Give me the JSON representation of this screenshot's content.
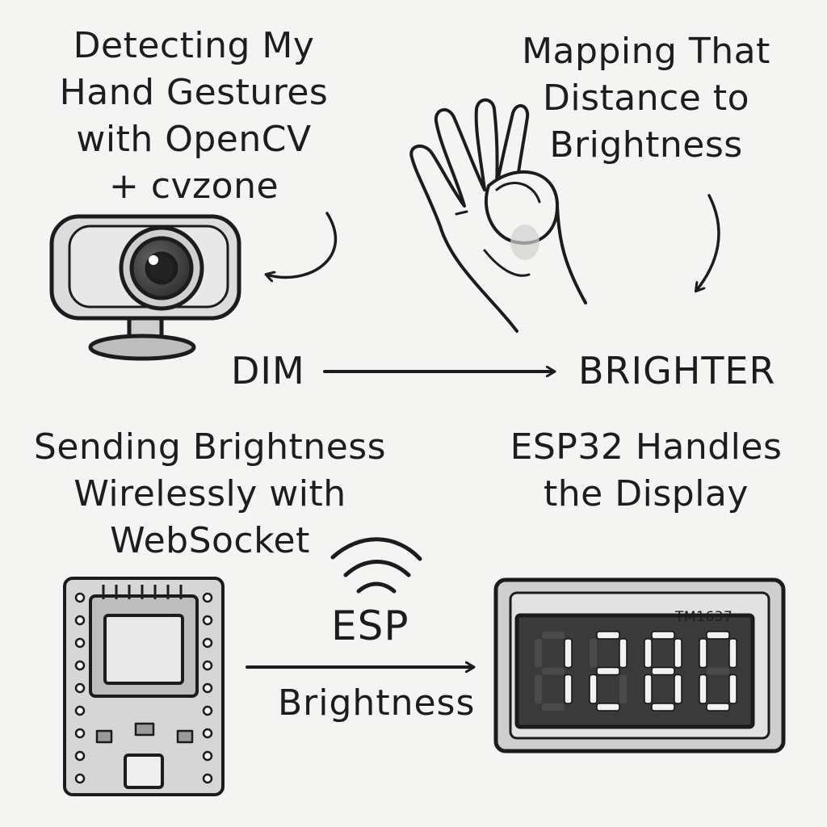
{
  "steps": {
    "detect": {
      "lines": [
        "Detecting My",
        "Hand Gestures",
        "with OpenCV",
        "+ cvzone"
      ]
    },
    "map": {
      "lines": [
        "Mapping That",
        "Distance to",
        "Brightness"
      ]
    },
    "send": {
      "lines": [
        "Sending Brightness",
        "Wirelessly with",
        "WebSocket"
      ]
    },
    "display": {
      "lines": [
        "ESP32 Handles",
        "the Display"
      ]
    }
  },
  "scale": {
    "low_label": "DIM",
    "high_label": "BRIGHTER"
  },
  "link": {
    "top_label": "ESP",
    "bottom_label": "Brightness"
  },
  "display_module": {
    "chip_label": "TM1637",
    "digits": [
      "1",
      "2",
      "8",
      "0"
    ]
  },
  "icons": {
    "camera": "webcam-icon",
    "hand": "hand-pinch-gesture-icon",
    "board": "esp32-board-icon",
    "wifi": "wifi-signal-icon",
    "display": "seven-segment-display-icon"
  }
}
